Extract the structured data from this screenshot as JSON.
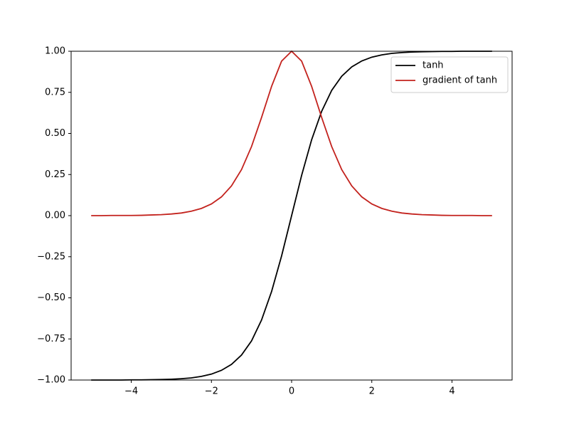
{
  "chart_data": {
    "type": "line",
    "x": [
      -5,
      -4.75,
      -4.5,
      -4.25,
      -4,
      -3.75,
      -3.5,
      -3.25,
      -3,
      -2.75,
      -2.5,
      -2.25,
      -2,
      -1.75,
      -1.5,
      -1.25,
      -1,
      -0.75,
      -0.5,
      -0.25,
      0,
      0.25,
      0.5,
      0.75,
      1,
      1.25,
      1.5,
      1.75,
      2,
      2.25,
      2.5,
      2.75,
      3,
      3.25,
      3.5,
      3.75,
      4,
      4.25,
      4.5,
      4.75,
      5
    ],
    "series": [
      {
        "name": "tanh",
        "color": "#000000",
        "values": [
          -1.0,
          -1.0,
          -1.0,
          -1.0,
          -0.999,
          -0.999,
          -0.998,
          -0.997,
          -0.995,
          -0.992,
          -0.987,
          -0.978,
          -0.964,
          -0.941,
          -0.905,
          -0.848,
          -0.762,
          -0.635,
          -0.462,
          -0.245,
          0,
          0.245,
          0.462,
          0.635,
          0.762,
          0.848,
          0.905,
          0.941,
          0.964,
          0.978,
          0.987,
          0.992,
          0.995,
          0.997,
          0.998,
          0.999,
          0.999,
          1.0,
          1.0,
          1.0,
          1.0
        ]
      },
      {
        "name": "gradient of tanh",
        "color": "#c3221d",
        "values": [
          0.0,
          0.0,
          0.001,
          0.001,
          0.001,
          0.002,
          0.004,
          0.006,
          0.01,
          0.016,
          0.027,
          0.044,
          0.071,
          0.114,
          0.181,
          0.28,
          0.42,
          0.597,
          0.786,
          0.94,
          1,
          0.94,
          0.786,
          0.597,
          0.42,
          0.28,
          0.181,
          0.114,
          0.071,
          0.044,
          0.027,
          0.016,
          0.01,
          0.006,
          0.004,
          0.002,
          0.001,
          0.001,
          0.001,
          0.0,
          0.0
        ]
      }
    ],
    "xlim": [
      -5.5,
      5.5
    ],
    "ylim": [
      -1,
      1
    ],
    "xticks": [
      {
        "value": -4,
        "label": "−4"
      },
      {
        "value": -2,
        "label": "−2"
      },
      0,
      2,
      4
    ],
    "yticks": [
      {
        "value": -1,
        "label": "−1.00"
      },
      {
        "value": -0.75,
        "label": "−0.75"
      },
      {
        "value": -0.5,
        "label": "−0.50"
      },
      {
        "value": -0.25,
        "label": "−0.25"
      },
      {
        "value": 0,
        "label": "0.00"
      },
      {
        "value": 0.25,
        "label": "0.25"
      },
      {
        "value": 0.5,
        "label": "0.50"
      },
      {
        "value": 0.75,
        "label": "0.75"
      },
      {
        "value": 1,
        "label": "1.00"
      }
    ],
    "legend": "upper right",
    "grid": false
  }
}
